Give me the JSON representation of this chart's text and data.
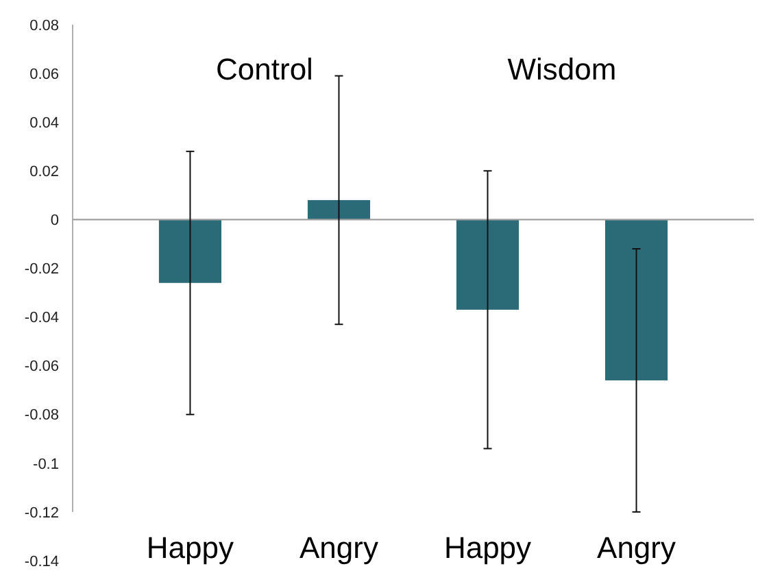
{
  "chart_data": {
    "type": "bar",
    "categories": [
      "Happy",
      "Angry",
      "Happy",
      "Angry"
    ],
    "values": [
      -0.026,
      0.008,
      -0.037,
      -0.066
    ],
    "errors": [
      0.054,
      0.051,
      0.057,
      0.054
    ],
    "color": "#2b6b78",
    "ylim": [
      -0.14,
      0.08
    ],
    "yticks": [
      {
        "value": 0.08,
        "label": "0.08"
      },
      {
        "value": 0.06,
        "label": "0.06"
      },
      {
        "value": 0.04,
        "label": "0.04"
      },
      {
        "value": 0.02,
        "label": "0.02"
      },
      0,
      {
        "value": -0.02,
        "label": "-0.02"
      },
      {
        "value": -0.04,
        "label": "-0.04"
      },
      {
        "value": -0.06,
        "label": "-0.06"
      },
      {
        "value": -0.08,
        "label": "-0.08"
      },
      {
        "value": -0.1,
        "label": "-0.1"
      },
      {
        "value": -0.12,
        "label": "-0.12"
      },
      {
        "value": -0.14,
        "label": "-0.14"
      }
    ],
    "annotations": [
      "Control",
      "Wisdom"
    ]
  }
}
